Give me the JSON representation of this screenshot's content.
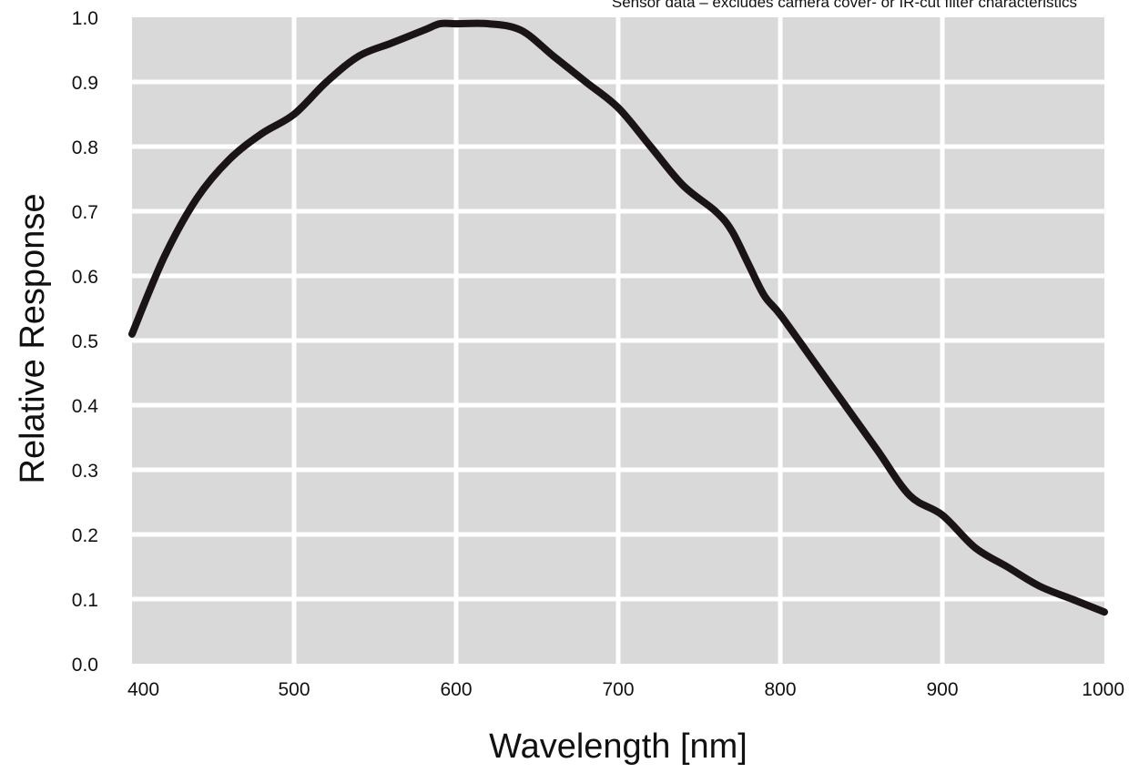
{
  "chart_data": {
    "type": "line",
    "note": "Sensor data – excludes camera cover- or IR-cut filter characteristics",
    "xlabel": "Wavelength [nm]",
    "ylabel": "Relative Response",
    "xlim": [
      400,
      1000
    ],
    "ylim": [
      0.0,
      1.0
    ],
    "x_ticks": [
      "400",
      "500",
      "600",
      "700",
      "800",
      "900",
      "1000"
    ],
    "y_ticks": [
      "0.0",
      "0.1",
      "0.2",
      "0.3",
      "0.4",
      "0.5",
      "0.6",
      "0.7",
      "0.8",
      "0.9",
      "1.0"
    ],
    "grid": true,
    "colors": {
      "plot_background": "#d9d9d9",
      "grid": "#ffffff",
      "line": "#1a1416"
    },
    "series": [
      {
        "x": [
          400,
          420,
          440,
          460,
          480,
          500,
          520,
          540,
          560,
          580,
          590,
          600,
          620,
          640,
          660,
          680,
          700,
          720,
          740,
          760,
          770,
          780,
          790,
          800,
          820,
          840,
          860,
          880,
          900,
          920,
          940,
          960,
          980,
          1000
        ],
        "values": [
          0.51,
          0.63,
          0.72,
          0.78,
          0.82,
          0.85,
          0.9,
          0.94,
          0.96,
          0.98,
          0.99,
          0.99,
          0.99,
          0.98,
          0.94,
          0.9,
          0.86,
          0.8,
          0.74,
          0.7,
          0.67,
          0.62,
          0.57,
          0.54,
          0.47,
          0.4,
          0.33,
          0.26,
          0.23,
          0.18,
          0.15,
          0.12,
          0.1,
          0.08
        ]
      }
    ]
  }
}
